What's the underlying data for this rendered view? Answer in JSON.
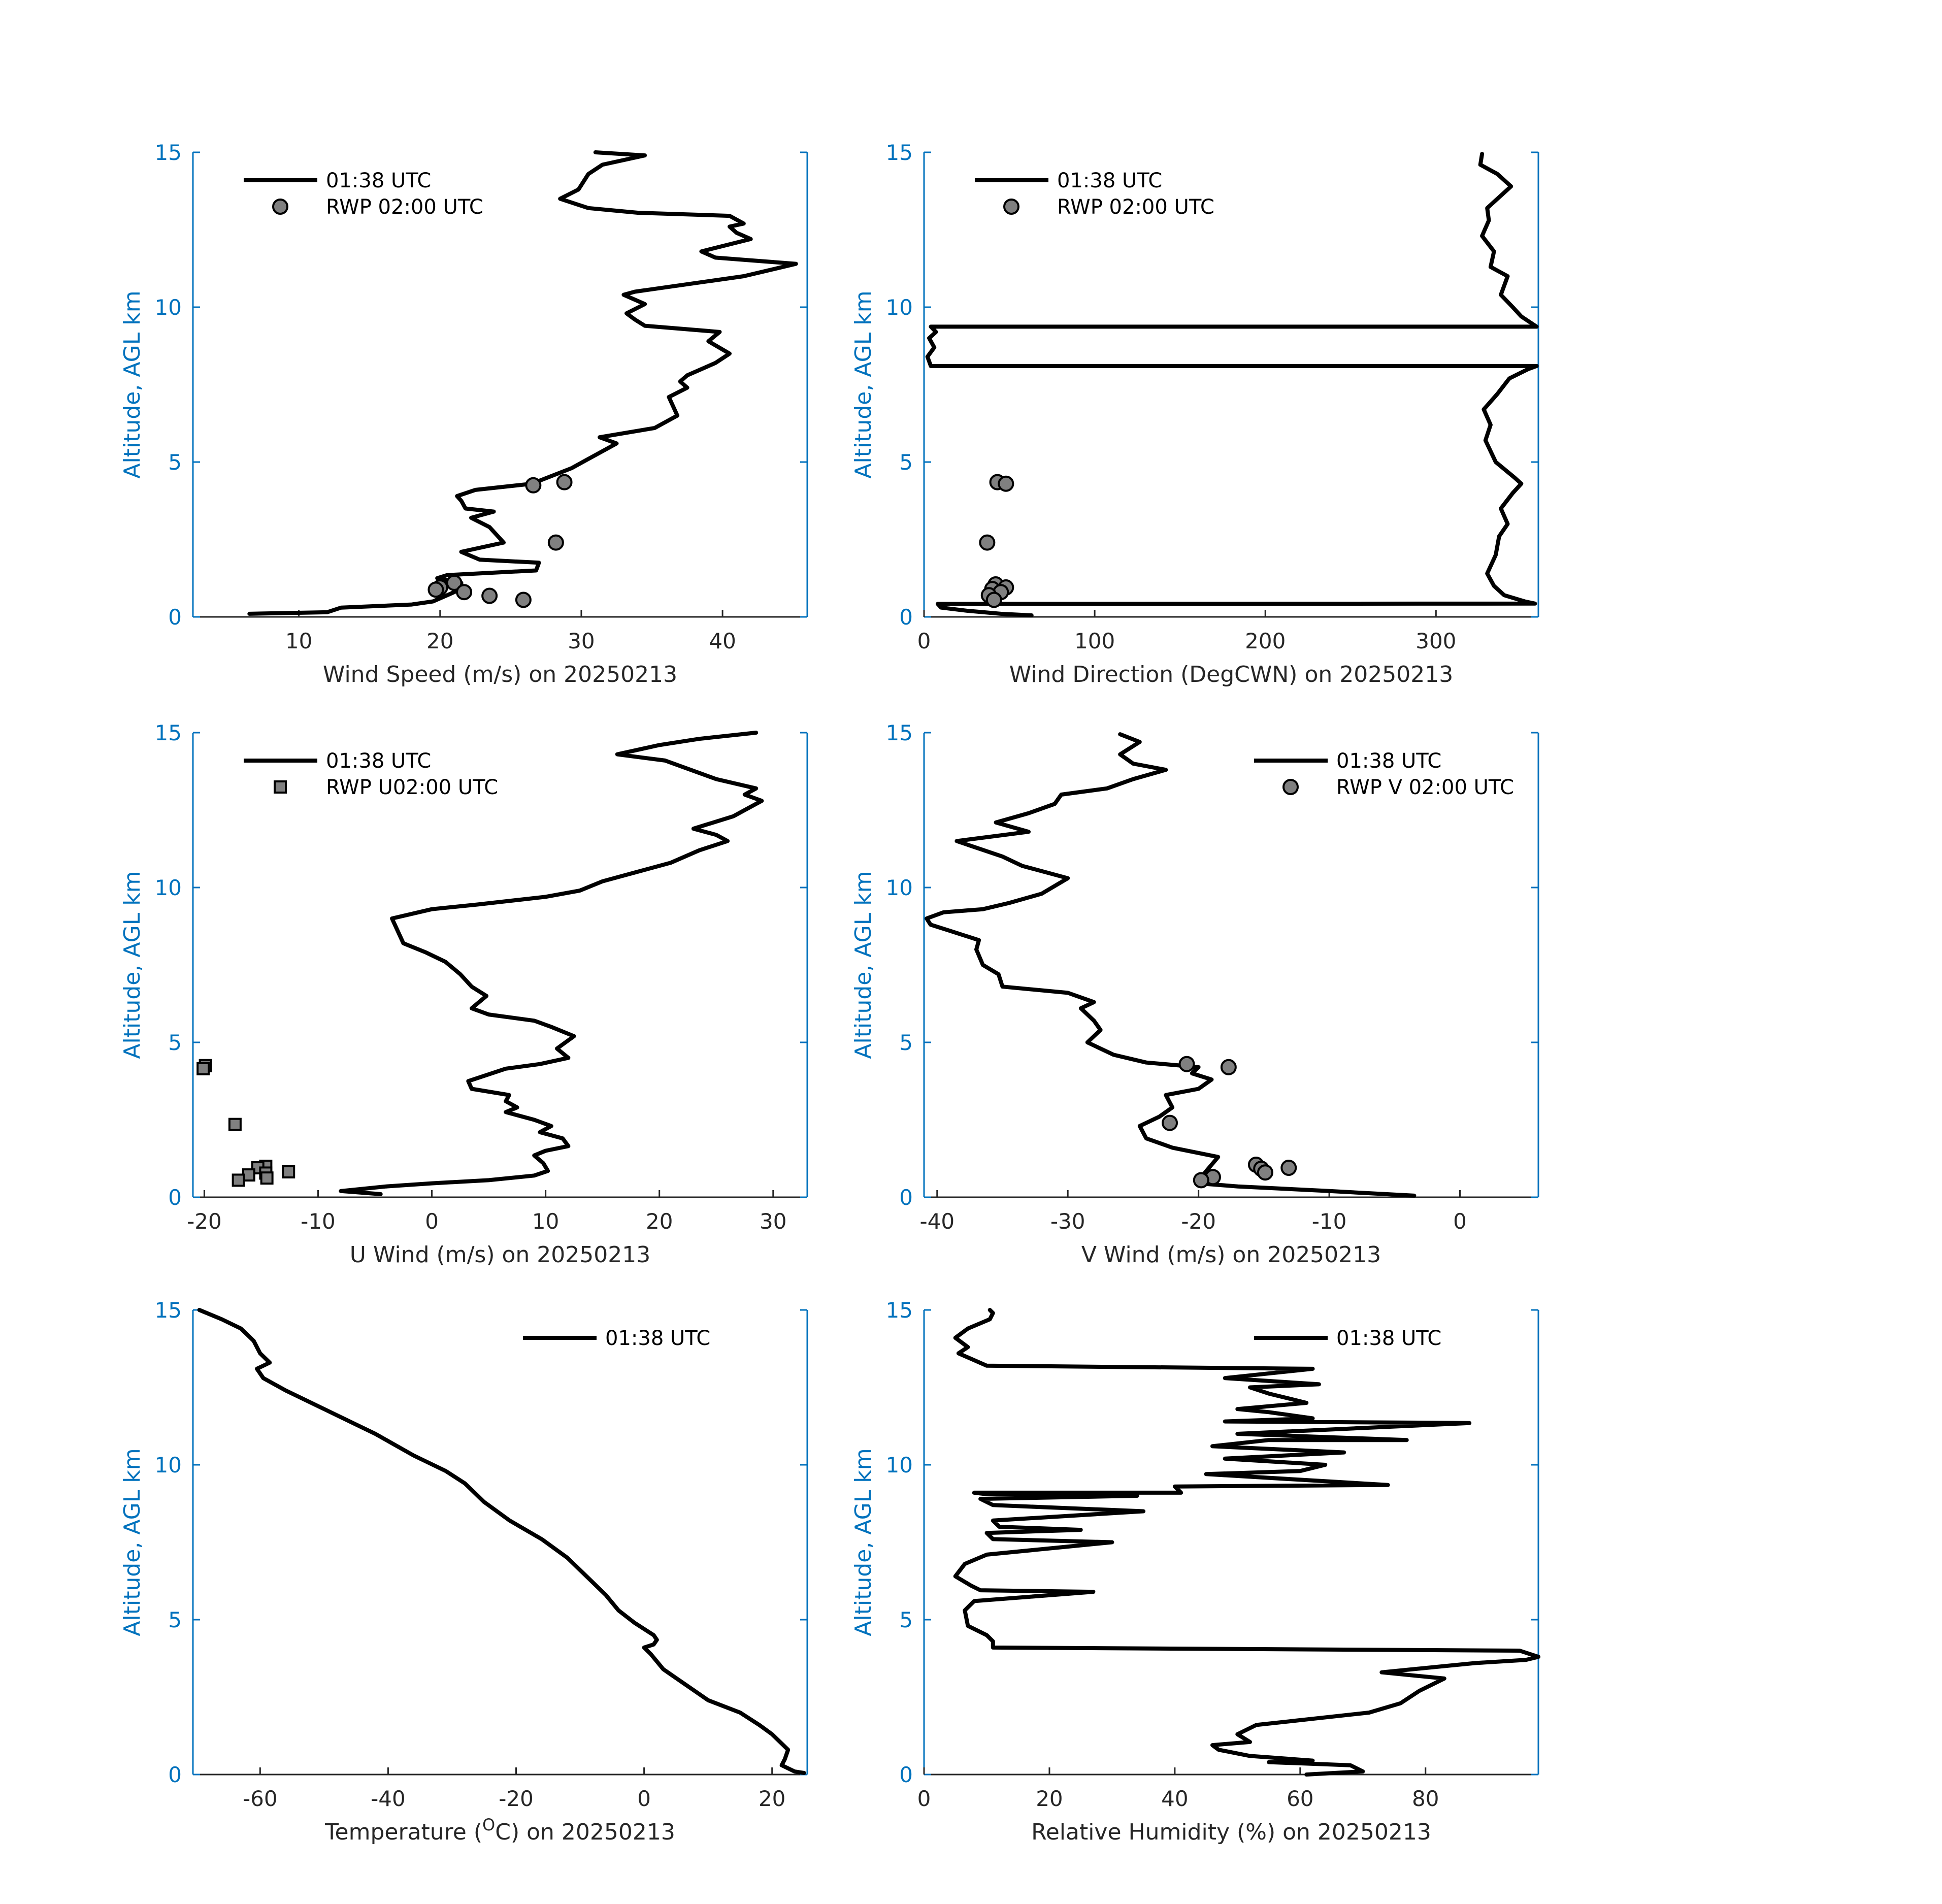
{
  "figure": {
    "colors": {
      "axis_y": "#0072BD",
      "axis_x": "#262626",
      "line": "#000000",
      "marker_fill": "#808080"
    }
  },
  "chart_data": [
    {
      "id": "wind-speed",
      "type": "line",
      "xlabel": "Wind Speed (m/s) on 20250213",
      "ylabel": "Altitude, AGL km",
      "xlim": [
        2.5,
        46
      ],
      "ylim": [
        0,
        15
      ],
      "xticks": [
        10,
        20,
        30,
        40
      ],
      "yticks": [
        0,
        5,
        10,
        15
      ],
      "legend_position": "top-left",
      "series": [
        {
          "name": "01:38 UTC",
          "kind": "line",
          "x": [
            6.5,
            12,
            13,
            18,
            19.5,
            20.5,
            21.5,
            21.5,
            19.8,
            20.5,
            26.8,
            27,
            22.8,
            21.5,
            24.5,
            23.5,
            22.2,
            23.8,
            21.8,
            21.5,
            21.2,
            22.5,
            26.5,
            29.3,
            32.5,
            31.3,
            35.2,
            36.8,
            36.2,
            37.5,
            37,
            37.5,
            39.5,
            40.5,
            39,
            39.8,
            34.5,
            33.8,
            33.2,
            34.5,
            33,
            33.8,
            41.5,
            45.2,
            39.5,
            38.5,
            42,
            41,
            40.5,
            41.5,
            40.5,
            34,
            30.5,
            28.5,
            29.8,
            30.5,
            31.5,
            34.5,
            31
          ],
          "y": [
            0.1,
            0.15,
            0.3,
            0.4,
            0.5,
            0.7,
            0.9,
            1.1,
            1.25,
            1.35,
            1.5,
            1.75,
            1.85,
            2.1,
            2.4,
            2.9,
            3.2,
            3.4,
            3.5,
            3.75,
            3.9,
            4.1,
            4.3,
            4.8,
            5.6,
            5.8,
            6.1,
            6.5,
            7.1,
            7.4,
            7.6,
            7.8,
            8.2,
            8.5,
            8.9,
            9.2,
            9.4,
            9.6,
            9.8,
            10.1,
            10.4,
            10.5,
            11.0,
            11.4,
            11.6,
            11.8,
            12.2,
            12.4,
            12.6,
            12.7,
            12.95,
            13.05,
            13.2,
            13.5,
            13.8,
            14.3,
            14.6,
            14.9,
            15.0
          ]
        },
        {
          "name": "RWP 02:00 UTC",
          "kind": "scatter",
          "x": [
            28.8,
            26.6,
            28.2,
            21.0,
            20.0,
            19.7,
            21.7,
            23.5,
            25.9
          ],
          "y": [
            4.35,
            4.25,
            2.4,
            1.1,
            0.95,
            0.88,
            0.8,
            0.68,
            0.55
          ]
        }
      ]
    },
    {
      "id": "wind-direction",
      "type": "line",
      "xlabel": "Wind Direction (DegCWN) on 20250213",
      "ylabel": "Altitude, AGL km",
      "xlim": [
        0,
        360
      ],
      "ylim": [
        0,
        15
      ],
      "xticks": [
        0,
        100,
        200,
        300
      ],
      "yticks": [
        0,
        5,
        10,
        15
      ],
      "legend_position": "top-left",
      "series": [
        {
          "name": "01:38 UTC",
          "kind": "line",
          "x": [
            63,
            45,
            25,
            10,
            8,
            358,
            352,
            340,
            334,
            330,
            335,
            337,
            342,
            338,
            345,
            350,
            346,
            335,
            329,
            332,
            328,
            336,
            343,
            354,
            359,
            359,
            4,
            2,
            6,
            3,
            7,
            4,
            359,
            350,
            345,
            338,
            342,
            332,
            334,
            327,
            331,
            330,
            344,
            336,
            326,
            327
          ],
          "y": [
            0.05,
            0.1,
            0.2,
            0.3,
            0.42,
            0.43,
            0.5,
            0.7,
            1.0,
            1.4,
            2.0,
            2.6,
            3.0,
            3.5,
            4.0,
            4.3,
            4.5,
            5.0,
            5.7,
            6.2,
            6.7,
            7.2,
            7.7,
            8.0,
            8.1,
            8.1,
            8.1,
            8.4,
            8.7,
            9.0,
            9.2,
            9.37,
            9.37,
            9.7,
            10.0,
            10.4,
            11.0,
            11.3,
            11.8,
            12.3,
            12.8,
            13.2,
            13.9,
            14.3,
            14.6,
            14.95
          ]
        },
        {
          "name": "RWP 02:00 UTC",
          "kind": "scatter",
          "x": [
            43,
            48,
            37,
            42,
            48,
            40,
            45,
            38,
            41
          ],
          "y": [
            4.35,
            4.3,
            2.4,
            1.05,
            0.95,
            0.9,
            0.8,
            0.7,
            0.55
          ]
        }
      ]
    },
    {
      "id": "u-wind",
      "type": "line",
      "xlabel": "U Wind (m/s) on 20250213",
      "ylabel": "Altitude, AGL km",
      "xlim": [
        -21,
        33
      ],
      "ylim": [
        0,
        15
      ],
      "xticks": [
        -20,
        -10,
        0,
        10,
        20,
        30
      ],
      "yticks": [
        0,
        5,
        10,
        15
      ],
      "legend_position": "top-left",
      "series": [
        {
          "name": "01:38 UTC",
          "kind": "line",
          "x": [
            -4.5,
            -8,
            -4,
            0,
            5,
            9,
            10.2,
            9.8,
            9,
            10,
            12,
            11.5,
            9.5,
            10.5,
            9,
            6.5,
            7.5,
            6.5,
            6.8,
            3.5,
            3.2,
            6.5,
            9.5,
            12,
            11,
            12.5,
            10.5,
            9,
            5,
            3.5,
            4.8,
            3.5,
            2.5,
            1.2,
            -0.5,
            -2.5,
            -3,
            -3.5,
            0,
            4,
            10,
            13,
            15,
            18,
            21,
            23.5,
            26,
            25,
            23,
            26.5,
            29,
            27.5,
            28.5,
            25,
            20.5,
            16.3,
            20,
            23.5,
            28.5
          ],
          "y": [
            0.1,
            0.2,
            0.35,
            0.45,
            0.55,
            0.7,
            0.85,
            1.1,
            1.35,
            1.5,
            1.65,
            1.9,
            2.1,
            2.3,
            2.5,
            2.75,
            2.9,
            3.1,
            3.3,
            3.5,
            3.75,
            4.15,
            4.3,
            4.5,
            4.8,
            5.2,
            5.5,
            5.7,
            5.9,
            6.1,
            6.5,
            6.8,
            7.2,
            7.6,
            7.9,
            8.2,
            8.6,
            9.0,
            9.3,
            9.45,
            9.7,
            9.9,
            10.2,
            10.5,
            10.8,
            11.2,
            11.5,
            11.7,
            11.9,
            12.3,
            12.8,
            13.0,
            13.2,
            13.5,
            14.1,
            14.3,
            14.6,
            14.8,
            15.0
          ]
        },
        {
          "name": "RWP U02:00 UTC",
          "kind": "scatter",
          "x": [
            -19.9,
            -20.1,
            -17.3,
            -14.6,
            -15.3,
            -14.6,
            -16.1,
            -12.6,
            -17.0,
            -14.5
          ],
          "y": [
            4.25,
            4.15,
            2.35,
            1.0,
            0.95,
            0.78,
            0.72,
            0.82,
            0.55,
            0.62
          ]
        }
      ]
    },
    {
      "id": "v-wind",
      "type": "line",
      "xlabel": "V Wind (m/s) on 20250213",
      "ylabel": "Altitude, AGL km",
      "xlim": [
        -41,
        6
      ],
      "ylim": [
        0,
        15
      ],
      "xticks": [
        -40,
        -30,
        -20,
        -10,
        0
      ],
      "yticks": [
        0,
        5,
        10,
        15
      ],
      "legend_position": "top-right",
      "series": [
        {
          "name": "01:38 UTC",
          "kind": "line",
          "x": [
            -3.5,
            -10,
            -17,
            -20,
            -19,
            -19.5,
            -18.5,
            -22,
            -24,
            -24.5,
            -23,
            -22,
            -22.5,
            -20,
            -19,
            -20.5,
            -20,
            -24,
            -26.5,
            -28.5,
            -27.5,
            -28,
            -29,
            -28,
            -30,
            -35,
            -35.3,
            -36.5,
            -37,
            -36.8,
            -39,
            -40.5,
            -40.8,
            -39.5,
            -36.5,
            -34.5,
            -32,
            -30,
            -33.5,
            -35,
            -38.5,
            -33,
            -35.5,
            -33,
            -31,
            -30.5,
            -27,
            -25,
            -22.5,
            -25,
            -26,
            -24.5,
            -26
          ],
          "y": [
            0.05,
            0.2,
            0.35,
            0.45,
            0.55,
            0.8,
            1.3,
            1.6,
            1.9,
            2.3,
            2.6,
            2.9,
            3.3,
            3.5,
            3.8,
            4.0,
            4.2,
            4.35,
            4.6,
            5.0,
            5.4,
            5.7,
            6.1,
            6.3,
            6.6,
            6.8,
            7.2,
            7.5,
            8.0,
            8.3,
            8.6,
            8.8,
            9.0,
            9.2,
            9.3,
            9.5,
            9.8,
            10.3,
            10.7,
            11.0,
            11.5,
            11.8,
            12.1,
            12.4,
            12.7,
            13.0,
            13.2,
            13.5,
            13.8,
            14.0,
            14.3,
            14.7,
            14.95
          ]
        },
        {
          "name": "RWP V 02:00 UTC",
          "kind": "scatter",
          "x": [
            -20.9,
            -17.7,
            -22.2,
            -15.6,
            -15.2,
            -14.9,
            -13.1,
            -18.9,
            -19.8
          ],
          "y": [
            4.3,
            4.2,
            2.4,
            1.05,
            0.92,
            0.8,
            0.95,
            0.65,
            0.55
          ]
        }
      ]
    },
    {
      "id": "temperature",
      "type": "line",
      "xlabel": "Temperature (",
      "xlabel_superscript": "O",
      "xlabel_tail": "C) on 20250213",
      "ylabel": "Altitude, AGL km",
      "xlim": [
        -70.5,
        25.5
      ],
      "ylim": [
        0,
        15
      ],
      "xticks": [
        -60,
        -40,
        -20,
        0,
        20
      ],
      "yticks": [
        0,
        5,
        10,
        15
      ],
      "legend_position": "top-right",
      "series": [
        {
          "name": "01:38 UTC",
          "kind": "line",
          "x": [
            25,
            23.5,
            21.5,
            22,
            22.5,
            21.5,
            20,
            18,
            15,
            10,
            6.5,
            3,
            1,
            0,
            1.5,
            2,
            1.5,
            -1.5,
            -4,
            -6,
            -9,
            -12,
            -16,
            -21,
            -25,
            -28,
            -31,
            -36,
            -42,
            -50,
            -56,
            -59.5,
            -60.5,
            -58.5,
            -60,
            -61,
            -63,
            -66,
            -69.5
          ],
          "y": [
            0.05,
            0.1,
            0.3,
            0.5,
            0.8,
            1.0,
            1.3,
            1.6,
            2.0,
            2.4,
            2.9,
            3.4,
            3.9,
            4.1,
            4.2,
            4.35,
            4.5,
            4.9,
            5.3,
            5.8,
            6.4,
            7.0,
            7.6,
            8.2,
            8.8,
            9.4,
            9.8,
            10.3,
            11.0,
            11.8,
            12.4,
            12.8,
            13.1,
            13.3,
            13.6,
            14.0,
            14.4,
            14.7,
            15.0
          ]
        }
      ]
    },
    {
      "id": "relative-humidity",
      "type": "line",
      "xlabel": "Relative Humidity (%) on 20250213",
      "ylabel": "Altitude, AGL km",
      "xlim": [
        0,
        98
      ],
      "ylim": [
        0,
        15
      ],
      "xticks": [
        0,
        20,
        40,
        60,
        80
      ],
      "yticks": [
        0,
        5,
        10,
        15
      ],
      "legend_position": "top-right",
      "series": [
        {
          "name": "01:38 UTC",
          "kind": "line",
          "x": [
            61,
            70,
            68,
            55,
            62,
            52,
            47,
            46,
            52,
            50,
            53,
            62,
            71,
            76,
            79,
            83,
            73,
            88,
            96,
            98,
            95,
            11,
            11,
            10,
            7,
            6.5,
            8,
            27,
            9,
            7.5,
            5,
            6.5,
            10,
            30,
            11,
            10,
            25,
            12,
            11,
            35,
            11,
            9,
            34,
            10,
            8,
            41,
            40,
            74,
            45,
            60,
            64,
            48,
            67,
            46,
            55,
            77,
            50,
            87,
            48,
            62,
            55,
            50,
            61,
            55,
            52,
            63,
            48,
            62,
            10,
            5.5,
            7,
            5,
            7,
            10.5,
            11,
            10.5
          ],
          "y": [
            0.0,
            0.1,
            0.3,
            0.4,
            0.45,
            0.6,
            0.8,
            0.95,
            1.05,
            1.3,
            1.6,
            1.8,
            2.0,
            2.3,
            2.7,
            3.1,
            3.3,
            3.6,
            3.7,
            3.8,
            4.0,
            4.1,
            4.3,
            4.5,
            4.8,
            5.3,
            5.6,
            5.9,
            5.95,
            6.1,
            6.4,
            6.8,
            7.1,
            7.5,
            7.6,
            7.8,
            7.9,
            8.0,
            8.2,
            8.5,
            8.7,
            8.9,
            9.0,
            9.05,
            9.1,
            9.1,
            9.3,
            9.35,
            9.7,
            9.8,
            10.0,
            10.2,
            10.4,
            10.6,
            10.8,
            10.8,
            11.0,
            11.35,
            11.4,
            11.5,
            11.7,
            11.8,
            12.0,
            12.3,
            12.5,
            12.6,
            12.8,
            13.1,
            13.2,
            13.6,
            13.8,
            14.1,
            14.4,
            14.7,
            14.9,
            15.0
          ]
        }
      ]
    }
  ]
}
